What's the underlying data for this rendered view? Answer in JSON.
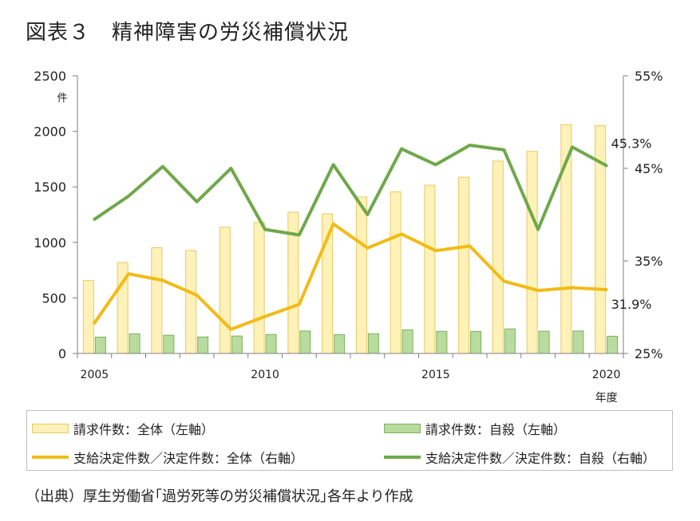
{
  "title": "図表３　精神障害の労災補償状況",
  "source": "（出典）厚生労働省｢過労死等の労災補償状況｣各年より作成",
  "colors": {
    "bar_total_fill": "#fff2b8",
    "bar_total_stroke": "#e8c860",
    "bar_suicide_fill": "#b9dc9e",
    "bar_suicide_stroke": "#7ab05a",
    "line_total": "#f2bb16",
    "line_suicide": "#6fa84a",
    "axis": "#7f7f7f"
  },
  "legend": {
    "bar_total": "請求件数：全体（左軸）",
    "bar_suicide": "請求件数：自殺（左軸）",
    "line_total": "支給決定件数／決定件数：全体（右軸）",
    "line_suicide": "支給決定件数／決定件数：自殺（右軸）"
  },
  "chart_data": {
    "type": "bar+line",
    "x": [
      2005,
      2006,
      2007,
      2008,
      2009,
      2010,
      2011,
      2012,
      2013,
      2014,
      2015,
      2016,
      2017,
      2018,
      2019,
      2020
    ],
    "x_tick_labels": [
      "2005",
      "2010",
      "2015",
      "2020"
    ],
    "x_tick_values": [
      2005,
      2010,
      2015,
      2020
    ],
    "xlabel": "年度",
    "y_left": {
      "label": "件",
      "range": [
        0,
        2500
      ],
      "ticks": [
        "0",
        "500",
        "1000",
        "1500",
        "2000",
        "2500"
      ]
    },
    "y_right": {
      "range": [
        25,
        55
      ],
      "ticks": [
        "25%",
        "35%",
        "45%",
        "55%"
      ],
      "tick_values": [
        25,
        35,
        45,
        55
      ]
    },
    "bars": [
      {
        "name": "請求件数：全体（左軸）",
        "axis": "left",
        "values": [
          656,
          819,
          952,
          927,
          1136,
          1181,
          1272,
          1257,
          1409,
          1456,
          1515,
          1586,
          1732,
          1820,
          2060,
          2051
        ]
      },
      {
        "name": "請求件数：自殺（左軸）",
        "axis": "left",
        "values": [
          147,
          176,
          164,
          148,
          157,
          171,
          202,
          169,
          177,
          213,
          199,
          198,
          221,
          200,
          202,
          155
        ]
      }
    ],
    "lines": [
      {
        "name": "支給決定件数／決定件数：全体（右軸）",
        "axis": "right",
        "values": [
          28.3,
          33.6,
          32.9,
          31.3,
          27.6,
          29.0,
          30.3,
          39.0,
          36.4,
          37.9,
          36.1,
          36.6,
          32.8,
          31.8,
          32.1,
          31.9
        ]
      },
      {
        "name": "支給決定件数／決定件数：自殺（右軸）",
        "axis": "right",
        "values": [
          39.5,
          42.0,
          45.2,
          41.4,
          45.0,
          38.4,
          37.8,
          45.4,
          40.0,
          47.1,
          45.4,
          47.5,
          47.0,
          38.4,
          47.3,
          45.3
        ]
      }
    ],
    "annotations": [
      {
        "text": "45.3%",
        "series": "支給決定件数／決定件数：自殺（右軸）",
        "x": 2020
      },
      {
        "text": "31.9%",
        "series": "支給決定件数／決定件数：全体（右軸）",
        "x": 2020
      }
    ],
    "grid": false,
    "legend_position": "bottom"
  }
}
